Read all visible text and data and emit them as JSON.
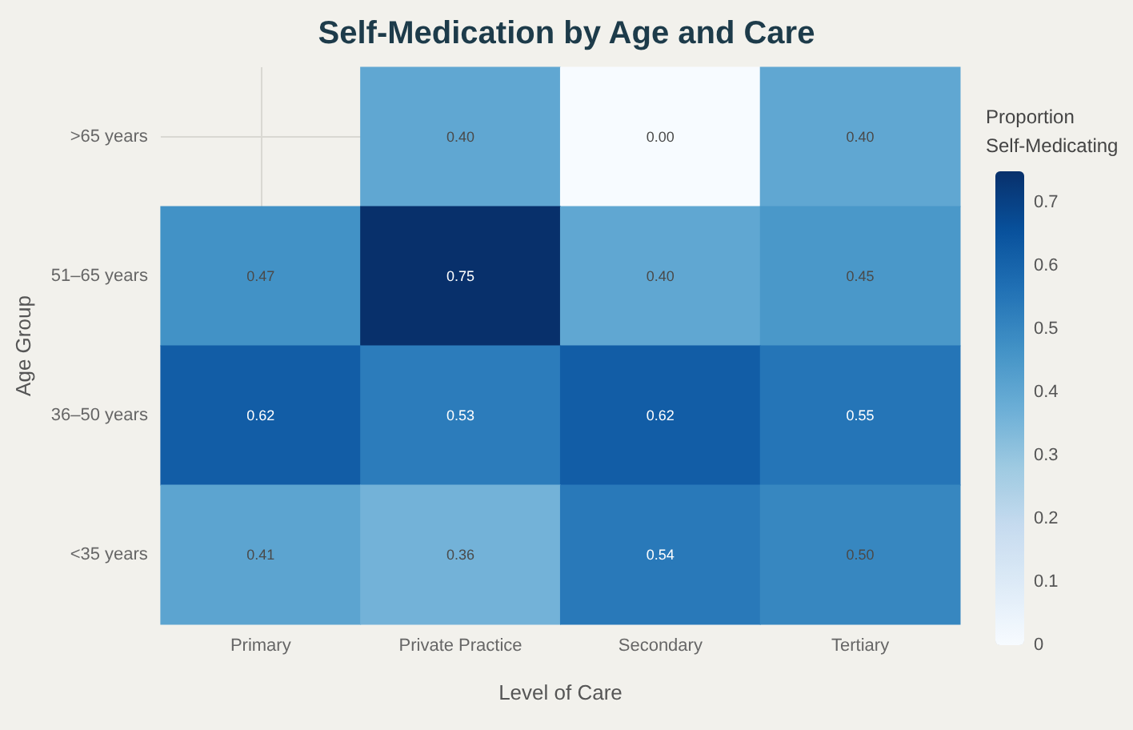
{
  "chart_data": {
    "type": "heatmap",
    "title": "Self-Medication by Age and Care",
    "xlabel": "Level of Care",
    "ylabel": "Age Group",
    "clabel": "Proportion\nSelf-Medicating",
    "categories": [
      "Primary",
      "Private Practice",
      "Secondary",
      "Tertiary"
    ],
    "y_categories": [
      ">65 years",
      "51–65 years",
      "36–50 years",
      "<35 years"
    ],
    "cells": [
      [
        null,
        0.4,
        0.0,
        0.4
      ],
      [
        0.47,
        0.75,
        0.4,
        0.45
      ],
      [
        0.62,
        0.53,
        0.62,
        0.55
      ],
      [
        0.41,
        0.36,
        0.54,
        0.5
      ]
    ],
    "cell_labels": [
      [
        null,
        "0.40",
        "0.00",
        "0.40"
      ],
      [
        "0.47",
        "0.75",
        "0.40",
        "0.45"
      ],
      [
        "0.62",
        "0.53",
        "0.62",
        "0.55"
      ],
      [
        "0.41",
        "0.36",
        "0.54",
        "0.50"
      ]
    ],
    "clim": [
      0,
      0.75
    ],
    "cticks": [
      0,
      0.1,
      0.2,
      0.3,
      0.4,
      0.5,
      0.6,
      0.7
    ],
    "grid": true,
    "data_labels": true
  }
}
